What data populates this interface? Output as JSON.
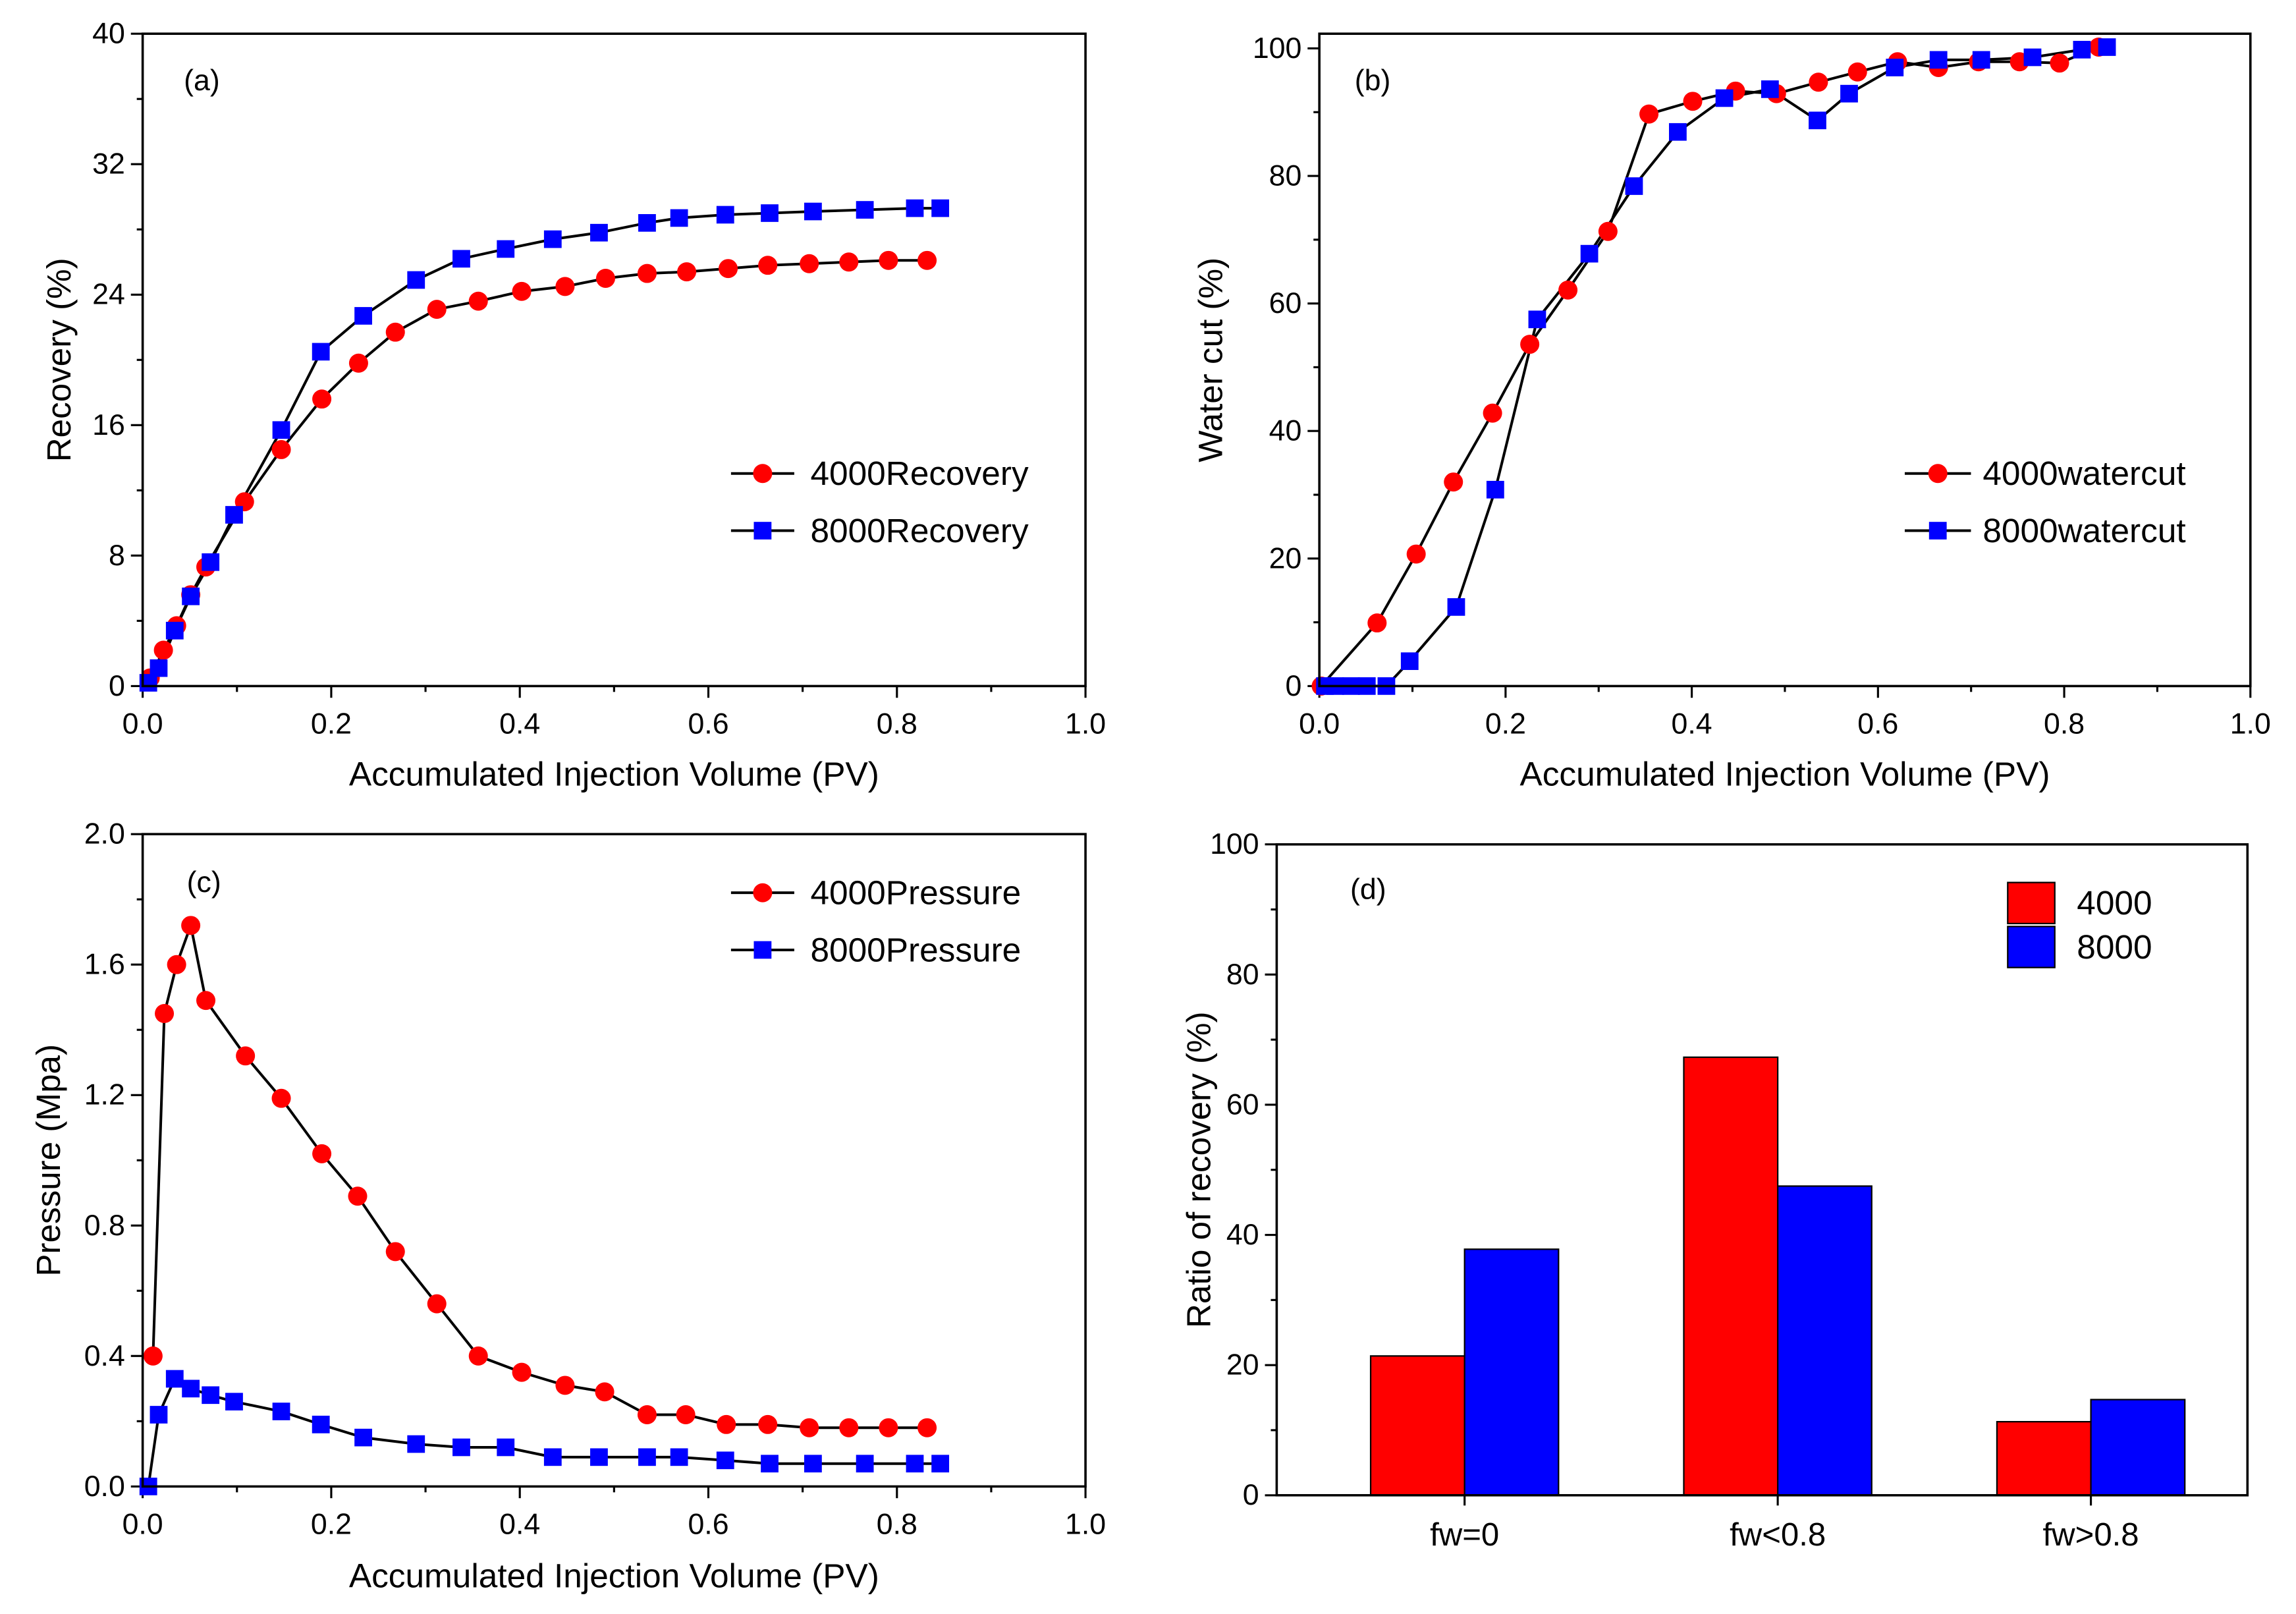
{
  "chart_data": [
    {
      "panel": "(a)",
      "type": "line",
      "xlabel": "Accumulated Injection Volume (PV)",
      "ylabel": "Recovery (%)",
      "xlim": [
        0,
        1.0
      ],
      "ylim": [
        0,
        40
      ],
      "xticks": [
        "0.0",
        "0.2",
        "0.4",
        "0.6",
        "0.8",
        "1.0"
      ],
      "yticks": [
        "0",
        "8",
        "16",
        "24",
        "32",
        "40"
      ],
      "series": [
        {
          "name": "4000Recovery",
          "color": "#FF0000",
          "x": [
            0.008,
            0.022,
            0.036,
            0.051,
            0.067,
            0.108,
            0.147,
            0.19,
            0.229,
            0.268,
            0.312,
            0.356,
            0.402,
            0.448,
            0.491,
            0.535,
            0.577,
            0.621,
            0.663,
            0.707,
            0.749,
            0.791,
            0.832
          ],
          "y": [
            0.5,
            2.2,
            3.7,
            5.6,
            7.3,
            11.3,
            14.5,
            17.6,
            19.8,
            21.7,
            23.1,
            23.6,
            24.2,
            24.5,
            25.0,
            25.3,
            25.4,
            25.6,
            25.8,
            25.9,
            26.0,
            26.1,
            26.1
          ]
        },
        {
          "name": "8000Recovery",
          "color": "#0000FF",
          "x": [
            0.006,
            0.017,
            0.034,
            0.051,
            0.072,
            0.097,
            0.147,
            0.189,
            0.234,
            0.29,
            0.338,
            0.385,
            0.435,
            0.484,
            0.535,
            0.569,
            0.618,
            0.665,
            0.711,
            0.766,
            0.819,
            0.846
          ],
          "y": [
            0.2,
            1.1,
            3.4,
            5.5,
            7.6,
            10.5,
            15.7,
            20.5,
            22.7,
            24.9,
            26.2,
            26.8,
            27.4,
            27.8,
            28.4,
            28.7,
            28.9,
            29.0,
            29.1,
            29.2,
            29.3,
            29.3
          ]
        }
      ]
    },
    {
      "panel": "(b)",
      "type": "line",
      "xlabel": "Accumulated Injection Volume (PV)",
      "ylabel": "Water cut (%)",
      "xlim": [
        0,
        1.0
      ],
      "ylim": [
        0,
        102.3
      ],
      "xticks": [
        "0.0",
        "0.2",
        "0.4",
        "0.6",
        "0.8",
        "1.0"
      ],
      "yticks": [
        "0",
        "20",
        "40",
        "60",
        "80",
        "100"
      ],
      "series": [
        {
          "name": "4000watercut",
          "color": "#FF0000",
          "x": [
            0.002,
            0.062,
            0.104,
            0.144,
            0.186,
            0.226,
            0.267,
            0.31,
            0.354,
            0.401,
            0.447,
            0.491,
            0.536,
            0.578,
            0.621,
            0.665,
            0.708,
            0.752,
            0.795,
            0.837
          ],
          "y": [
            0,
            9.9,
            20.7,
            32.0,
            42.8,
            53.6,
            62.1,
            71.3,
            89.7,
            91.7,
            93.3,
            92.9,
            94.7,
            96.3,
            97.9,
            97.0,
            97.9,
            97.9,
            97.7,
            100.2
          ]
        },
        {
          "name": "8000watercut",
          "color": "#0000FF",
          "x": [
            0.006,
            0.017,
            0.034,
            0.051,
            0.072,
            0.097,
            0.147,
            0.189,
            0.234,
            0.29,
            0.338,
            0.385,
            0.435,
            0.484,
            0.535,
            0.569,
            0.618,
            0.665,
            0.711,
            0.766,
            0.819,
            0.846
          ],
          "y": [
            0,
            0,
            0,
            0,
            0,
            3.9,
            12.4,
            30.8,
            57.5,
            67.8,
            78.4,
            86.9,
            92.2,
            93.6,
            88.7,
            92.9,
            97.0,
            98.2,
            98.2,
            98.6,
            99.8,
            100.2
          ]
        }
      ]
    },
    {
      "panel": "(c)",
      "type": "line",
      "xlabel": "Accumulated Injection Volume (PV)",
      "ylabel": "Pressure (Mpa)",
      "xlim": [
        0,
        1.0
      ],
      "ylim": [
        0,
        2.0
      ],
      "xticks": [
        "0.0",
        "0.2",
        "0.4",
        "0.6",
        "0.8",
        "1.0"
      ],
      "yticks": [
        "0.0",
        "0.4",
        "0.8",
        "1.2",
        "1.6",
        "2.0"
      ],
      "series": [
        {
          "name": "4000Pressure",
          "color": "#FF0000",
          "x": [
            0.011,
            0.023,
            0.036,
            0.051,
            0.067,
            0.109,
            0.147,
            0.19,
            0.228,
            0.268,
            0.312,
            0.356,
            0.402,
            0.448,
            0.49,
            0.535,
            0.576,
            0.619,
            0.663,
            0.707,
            0.749,
            0.791,
            0.832
          ],
          "y": [
            0.4,
            1.45,
            1.6,
            1.72,
            1.49,
            1.32,
            1.19,
            1.02,
            0.89,
            0.72,
            0.56,
            0.4,
            0.35,
            0.31,
            0.29,
            0.22,
            0.22,
            0.19,
            0.19,
            0.18,
            0.18,
            0.18,
            0.18
          ]
        },
        {
          "name": "8000Pressure",
          "color": "#0000FF",
          "x": [
            0.006,
            0.017,
            0.034,
            0.051,
            0.072,
            0.097,
            0.147,
            0.189,
            0.234,
            0.29,
            0.338,
            0.385,
            0.435,
            0.484,
            0.535,
            0.569,
            0.618,
            0.665,
            0.711,
            0.766,
            0.819,
            0.846
          ],
          "y": [
            0.0,
            0.22,
            0.33,
            0.3,
            0.28,
            0.26,
            0.23,
            0.19,
            0.15,
            0.13,
            0.12,
            0.12,
            0.09,
            0.09,
            0.09,
            0.09,
            0.08,
            0.07,
            0.07,
            0.07,
            0.07,
            0.07
          ]
        }
      ]
    },
    {
      "panel": "(d)",
      "type": "bar",
      "ylabel": "Ratio of recovery (%)",
      "ylim": [
        0,
        100
      ],
      "yticks": [
        "0",
        "20",
        "40",
        "60",
        "80",
        "100"
      ],
      "categories": [
        "fw=0",
        "fw<0.8",
        "fw>0.8"
      ],
      "series": [
        {
          "name": "4000",
          "color": "#FF0000",
          "values": [
            21.4,
            67.3,
            11.3
          ]
        },
        {
          "name": "8000",
          "color": "#0000FF",
          "values": [
            37.8,
            47.5,
            14.7
          ]
        }
      ]
    }
  ]
}
